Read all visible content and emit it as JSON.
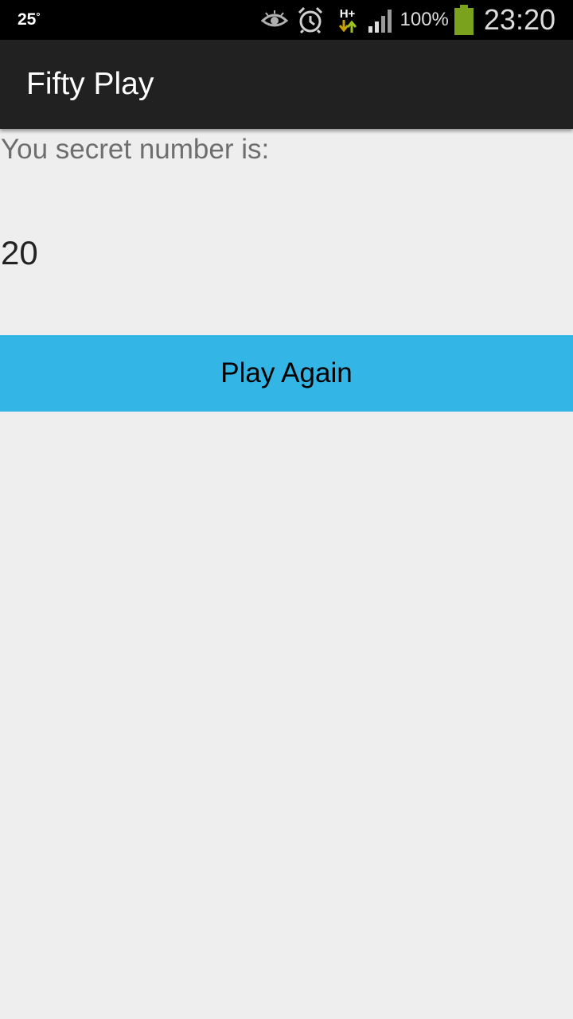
{
  "status_bar": {
    "temperature": "25",
    "degree_symbol": "°",
    "battery_percent": "100%",
    "time": "23:20",
    "network_type": "H+",
    "icons": [
      "eye-icon",
      "alarm-clock-icon",
      "network-hplus-icon",
      "signal-icon",
      "battery-icon"
    ],
    "colors": {
      "background": "#000000",
      "battery_fill": "#7aa21c",
      "data_arrows": "#9cc31e"
    }
  },
  "action_bar": {
    "title": "Fifty Play",
    "background": "#212121"
  },
  "main": {
    "secret_label": "You secret number is:",
    "secret_value": "20",
    "play_again_label": "Play Again",
    "button_color": "#33b5e5",
    "background": "#eeeeee"
  }
}
